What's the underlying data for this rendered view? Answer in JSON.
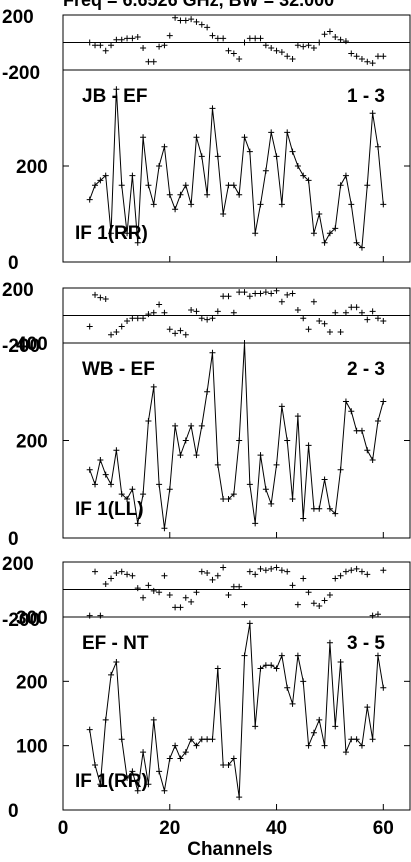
{
  "header": {
    "title": "Freq = 6.6526 GHz, BW = 32.000"
  },
  "x_axis": {
    "label": "Channels",
    "ticks": [
      "0",
      "20",
      "40",
      "60"
    ]
  },
  "chart_data": [
    {
      "type": "scatter",
      "baseline": "JB - EF",
      "channels": "1 - 3",
      "if_label": "IF 1(RR)",
      "phase_ticks": [
        "200",
        "-200"
      ],
      "amp_ticks": [
        "200",
        "0"
      ],
      "amp_ylim": [
        0,
        400
      ],
      "phase_ylim": [
        -200,
        200
      ],
      "amplitude": [
        [
          5,
          130
        ],
        [
          6,
          160
        ],
        [
          7,
          170
        ],
        [
          8,
          180
        ],
        [
          9,
          60
        ],
        [
          10,
          360
        ],
        [
          11,
          160
        ],
        [
          12,
          60
        ],
        [
          13,
          180
        ],
        [
          14,
          40
        ],
        [
          15,
          260
        ],
        [
          16,
          160
        ],
        [
          17,
          120
        ],
        [
          18,
          200
        ],
        [
          19,
          240
        ],
        [
          20,
          140
        ],
        [
          21,
          110
        ],
        [
          22,
          140
        ],
        [
          23,
          160
        ],
        [
          24,
          120
        ],
        [
          25,
          260
        ],
        [
          26,
          220
        ],
        [
          27,
          140
        ],
        [
          28,
          320
        ],
        [
          29,
          220
        ],
        [
          30,
          100
        ],
        [
          31,
          160
        ],
        [
          32,
          160
        ],
        [
          33,
          140
        ],
        [
          34,
          260
        ],
        [
          35,
          230
        ],
        [
          36,
          60
        ],
        [
          37,
          120
        ],
        [
          38,
          190
        ],
        [
          39,
          270
        ],
        [
          40,
          220
        ],
        [
          41,
          120
        ],
        [
          42,
          270
        ],
        [
          43,
          230
        ],
        [
          44,
          200
        ],
        [
          45,
          180
        ],
        [
          46,
          170
        ],
        [
          47,
          60
        ],
        [
          48,
          100
        ],
        [
          49,
          40
        ],
        [
          50,
          60
        ],
        [
          51,
          70
        ],
        [
          52,
          160
        ],
        [
          53,
          180
        ],
        [
          54,
          120
        ],
        [
          55,
          40
        ],
        [
          56,
          30
        ],
        [
          57,
          160
        ],
        [
          58,
          310
        ],
        [
          59,
          240
        ],
        [
          60,
          120
        ]
      ],
      "phase": [
        [
          5,
          0
        ],
        [
          6,
          -20
        ],
        [
          7,
          -20
        ],
        [
          8,
          -60
        ],
        [
          9,
          -20
        ],
        [
          10,
          20
        ],
        [
          11,
          20
        ],
        [
          12,
          30
        ],
        [
          13,
          30
        ],
        [
          14,
          40
        ],
        [
          15,
          -40
        ],
        [
          16,
          -140
        ],
        [
          17,
          -140
        ],
        [
          18,
          -30
        ],
        [
          19,
          -20
        ],
        [
          20,
          50
        ],
        [
          21,
          180
        ],
        [
          22,
          160
        ],
        [
          23,
          160
        ],
        [
          24,
          170
        ],
        [
          25,
          150
        ],
        [
          26,
          130
        ],
        [
          27,
          110
        ],
        [
          28,
          50
        ],
        [
          29,
          30
        ],
        [
          30,
          30
        ],
        [
          31,
          -60
        ],
        [
          32,
          -80
        ],
        [
          33,
          -120
        ],
        [
          34,
          0
        ],
        [
          35,
          30
        ],
        [
          36,
          30
        ],
        [
          37,
          30
        ],
        [
          38,
          -20
        ],
        [
          39,
          -40
        ],
        [
          40,
          -60
        ],
        [
          41,
          -70
        ],
        [
          42,
          -100
        ],
        [
          43,
          -120
        ],
        [
          44,
          -20
        ],
        [
          45,
          -30
        ],
        [
          46,
          -20
        ],
        [
          47,
          -40
        ],
        [
          48,
          0
        ],
        [
          49,
          60
        ],
        [
          50,
          80
        ],
        [
          51,
          40
        ],
        [
          52,
          20
        ],
        [
          53,
          10
        ],
        [
          54,
          -80
        ],
        [
          55,
          -100
        ],
        [
          56,
          -120
        ],
        [
          57,
          -140
        ],
        [
          58,
          -150
        ],
        [
          59,
          -100
        ],
        [
          60,
          -100
        ]
      ]
    },
    {
      "type": "scatter",
      "baseline": "WB - EF",
      "channels": "2 - 3",
      "if_label": "IF 1(LL)",
      "phase_ticks": [
        "200",
        "-200"
      ],
      "amp_ticks": [
        "400",
        "200",
        "0"
      ],
      "amp_ylim": [
        0,
        400
      ],
      "phase_ylim": [
        -200,
        200
      ],
      "amplitude": [
        [
          5,
          140
        ],
        [
          6,
          110
        ],
        [
          7,
          160
        ],
        [
          8,
          130
        ],
        [
          9,
          110
        ],
        [
          10,
          180
        ],
        [
          11,
          90
        ],
        [
          12,
          80
        ],
        [
          13,
          100
        ],
        [
          14,
          30
        ],
        [
          15,
          90
        ],
        [
          16,
          240
        ],
        [
          17,
          310
        ],
        [
          18,
          110
        ],
        [
          19,
          20
        ],
        [
          20,
          100
        ],
        [
          21,
          230
        ],
        [
          22,
          170
        ],
        [
          23,
          200
        ],
        [
          24,
          230
        ],
        [
          25,
          170
        ],
        [
          26,
          230
        ],
        [
          27,
          300
        ],
        [
          28,
          380
        ],
        [
          29,
          150
        ],
        [
          30,
          80
        ],
        [
          31,
          80
        ],
        [
          32,
          90
        ],
        [
          33,
          200
        ],
        [
          34,
          400
        ],
        [
          35,
          110
        ],
        [
          36,
          30
        ],
        [
          37,
          170
        ],
        [
          38,
          100
        ],
        [
          39,
          70
        ],
        [
          40,
          150
        ],
        [
          41,
          270
        ],
        [
          42,
          200
        ],
        [
          43,
          80
        ],
        [
          44,
          250
        ],
        [
          45,
          40
        ],
        [
          46,
          190
        ],
        [
          47,
          60
        ],
        [
          48,
          60
        ],
        [
          49,
          120
        ],
        [
          50,
          60
        ],
        [
          51,
          50
        ],
        [
          52,
          140
        ],
        [
          53,
          280
        ],
        [
          54,
          260
        ],
        [
          55,
          220
        ],
        [
          56,
          220
        ],
        [
          57,
          180
        ],
        [
          58,
          160
        ],
        [
          59,
          240
        ],
        [
          60,
          280
        ]
      ],
      "phase": [
        [
          5,
          -80
        ],
        [
          6,
          150
        ],
        [
          7,
          130
        ],
        [
          8,
          120
        ],
        [
          9,
          -140
        ],
        [
          10,
          -120
        ],
        [
          11,
          -80
        ],
        [
          12,
          -40
        ],
        [
          13,
          -20
        ],
        [
          14,
          -20
        ],
        [
          15,
          -20
        ],
        [
          16,
          10
        ],
        [
          17,
          20
        ],
        [
          18,
          80
        ],
        [
          19,
          20
        ],
        [
          20,
          -100
        ],
        [
          21,
          -130
        ],
        [
          22,
          -110
        ],
        [
          23,
          -140
        ],
        [
          24,
          40
        ],
        [
          25,
          30
        ],
        [
          26,
          -20
        ],
        [
          27,
          -30
        ],
        [
          28,
          -20
        ],
        [
          29,
          30
        ],
        [
          30,
          140
        ],
        [
          31,
          140
        ],
        [
          32,
          20
        ],
        [
          33,
          170
        ],
        [
          34,
          170
        ],
        [
          35,
          140
        ],
        [
          36,
          160
        ],
        [
          37,
          160
        ],
        [
          38,
          170
        ],
        [
          39,
          160
        ],
        [
          40,
          180
        ],
        [
          41,
          100
        ],
        [
          42,
          150
        ],
        [
          43,
          160
        ],
        [
          44,
          40
        ],
        [
          45,
          -20
        ],
        [
          46,
          -100
        ],
        [
          47,
          100
        ],
        [
          48,
          -40
        ],
        [
          49,
          -60
        ],
        [
          50,
          -120
        ],
        [
          51,
          20
        ],
        [
          52,
          -120
        ],
        [
          53,
          20
        ],
        [
          54,
          60
        ],
        [
          55,
          60
        ],
        [
          56,
          20
        ],
        [
          57,
          -30
        ],
        [
          58,
          30
        ],
        [
          59,
          -20
        ],
        [
          60,
          -40
        ]
      ]
    },
    {
      "type": "scatter",
      "baseline": "EF - NT",
      "channels": "3 - 5",
      "if_label": "IF 1(RR)",
      "phase_ticks": [
        "200",
        "-200"
      ],
      "amp_ticks": [
        "300",
        "200",
        "100",
        "0"
      ],
      "amp_ylim": [
        0,
        300
      ],
      "phase_ylim": [
        -200,
        200
      ],
      "amplitude": [
        [
          5,
          125
        ],
        [
          6,
          70
        ],
        [
          7,
          40
        ],
        [
          8,
          140
        ],
        [
          9,
          210
        ],
        [
          10,
          230
        ],
        [
          11,
          110
        ],
        [
          12,
          50
        ],
        [
          13,
          60
        ],
        [
          14,
          30
        ],
        [
          15,
          90
        ],
        [
          16,
          40
        ],
        [
          17,
          140
        ],
        [
          18,
          60
        ],
        [
          19,
          30
        ],
        [
          20,
          80
        ],
        [
          21,
          100
        ],
        [
          22,
          80
        ],
        [
          23,
          90
        ],
        [
          24,
          110
        ],
        [
          25,
          100
        ],
        [
          26,
          110
        ],
        [
          27,
          110
        ],
        [
          28,
          110
        ],
        [
          29,
          220
        ],
        [
          30,
          70
        ],
        [
          31,
          70
        ],
        [
          32,
          80
        ],
        [
          33,
          20
        ],
        [
          34,
          240
        ],
        [
          35,
          290
        ],
        [
          36,
          130
        ],
        [
          37,
          220
        ],
        [
          38,
          225
        ],
        [
          39,
          225
        ],
        [
          40,
          220
        ],
        [
          41,
          240
        ],
        [
          42,
          190
        ],
        [
          43,
          165
        ],
        [
          44,
          240
        ],
        [
          45,
          200
        ],
        [
          46,
          100
        ],
        [
          47,
          120
        ],
        [
          48,
          140
        ],
        [
          49,
          100
        ],
        [
          50,
          260
        ],
        [
          51,
          130
        ],
        [
          52,
          230
        ],
        [
          53,
          90
        ],
        [
          54,
          110
        ],
        [
          55,
          110
        ],
        [
          56,
          100
        ],
        [
          57,
          160
        ],
        [
          58,
          110
        ],
        [
          59,
          240
        ],
        [
          60,
          190
        ]
      ],
      "phase": [
        [
          5,
          -190
        ],
        [
          6,
          130
        ],
        [
          7,
          -190
        ],
        [
          8,
          40
        ],
        [
          9,
          80
        ],
        [
          10,
          120
        ],
        [
          11,
          130
        ],
        [
          12,
          110
        ],
        [
          13,
          100
        ],
        [
          14,
          10
        ],
        [
          15,
          -60
        ],
        [
          16,
          30
        ],
        [
          17,
          -10
        ],
        [
          18,
          -20
        ],
        [
          19,
          100
        ],
        [
          20,
          -40
        ],
        [
          21,
          -130
        ],
        [
          22,
          -130
        ],
        [
          23,
          -60
        ],
        [
          24,
          -90
        ],
        [
          25,
          -20
        ],
        [
          26,
          130
        ],
        [
          27,
          120
        ],
        [
          28,
          70
        ],
        [
          29,
          100
        ],
        [
          30,
          160
        ],
        [
          31,
          -40
        ],
        [
          32,
          20
        ],
        [
          33,
          20
        ],
        [
          34,
          -110
        ],
        [
          35,
          130
        ],
        [
          36,
          110
        ],
        [
          37,
          150
        ],
        [
          38,
          140
        ],
        [
          39,
          150
        ],
        [
          40,
          160
        ],
        [
          41,
          140
        ],
        [
          42,
          130
        ],
        [
          43,
          30
        ],
        [
          44,
          -110
        ],
        [
          45,
          80
        ],
        [
          46,
          -20
        ],
        [
          47,
          -100
        ],
        [
          48,
          -120
        ],
        [
          49,
          -80
        ],
        [
          50,
          -40
        ],
        [
          51,
          80
        ],
        [
          52,
          100
        ],
        [
          53,
          130
        ],
        [
          54,
          140
        ],
        [
          55,
          150
        ],
        [
          56,
          130
        ],
        [
          57,
          110
        ],
        [
          58,
          -190
        ],
        [
          59,
          -180
        ],
        [
          60,
          140
        ]
      ]
    }
  ]
}
